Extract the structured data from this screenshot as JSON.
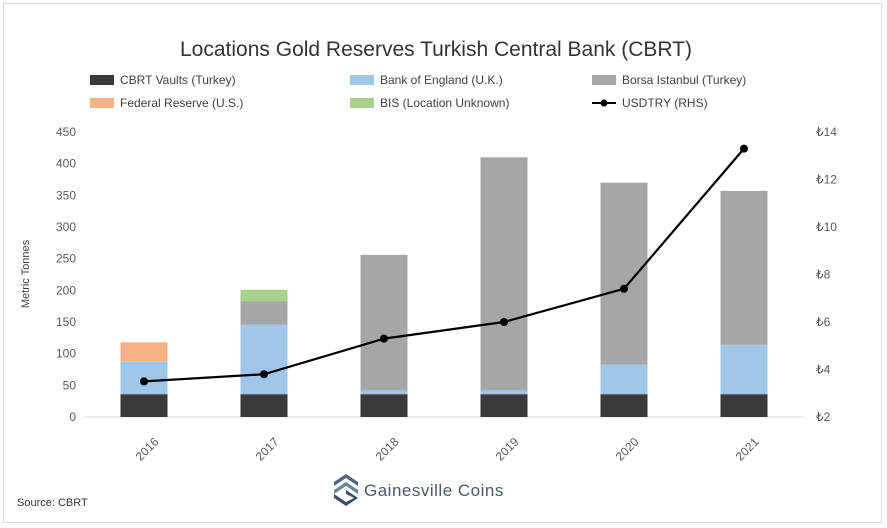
{
  "chart_data": {
    "type": "bar",
    "subtype": "stacked-bar-with-line",
    "title": "Locations Gold Reserves Turkish Central Bank (CBRT)",
    "categories": [
      "2016",
      "2017",
      "2018",
      "2019",
      "2020",
      "2021"
    ],
    "ylabel": "Metric Tonnes",
    "ylim": [
      0,
      450
    ],
    "yticks": [
      0,
      50,
      100,
      150,
      200,
      250,
      300,
      350,
      400,
      450
    ],
    "y2lim": [
      2,
      14
    ],
    "y2ticks": [
      "₺2",
      "₺4",
      "₺6",
      "₺8",
      "₺10",
      "₺12",
      "₺14"
    ],
    "y2values": [
      2,
      4,
      6,
      8,
      10,
      12,
      14
    ],
    "series": [
      {
        "name": "CBRT Vaults (Turkey)",
        "color": "#3a3a3a",
        "values": [
          36,
          36,
          36,
          36,
          36,
          36
        ]
      },
      {
        "name": "Bank of England (U.K.)",
        "color": "#9fc5e8",
        "values": [
          52,
          110,
          6,
          6,
          47,
          78
        ]
      },
      {
        "name": "Borsa Istanbul (Turkey)",
        "color": "#a6a6a6",
        "values": [
          0,
          37,
          214,
          368,
          287,
          243
        ]
      },
      {
        "name": "Federal Reserve (U.S.)",
        "color": "#f4b183",
        "values": [
          30,
          0,
          0,
          0,
          0,
          0
        ]
      },
      {
        "name": "BIS (Location Unknown)",
        "color": "#a9d18e",
        "values": [
          0,
          18,
          0,
          0,
          0,
          0
        ]
      }
    ],
    "line": {
      "name": "USDTRY (RHS)",
      "color": "#000000",
      "values": [
        3.5,
        3.8,
        5.3,
        6.0,
        7.4,
        13.3
      ]
    },
    "legend_placement": "top"
  },
  "source": "Source: CBRT",
  "brand": {
    "name": "Gainesville Coins"
  }
}
